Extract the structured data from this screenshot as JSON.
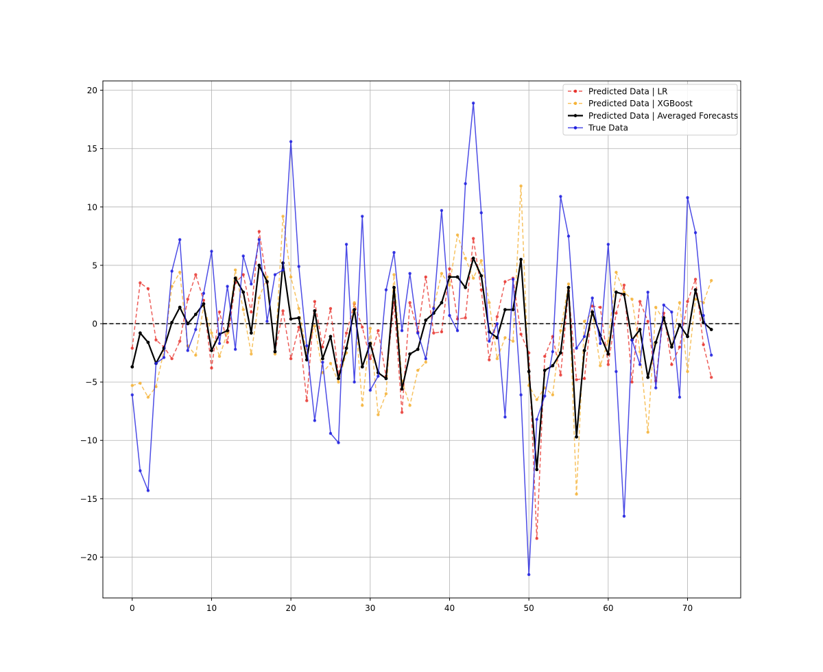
{
  "chart_data": {
    "type": "line",
    "title": "",
    "xlabel": "",
    "ylabel": "",
    "xlim": [
      -3.7,
      76.7
    ],
    "ylim": [
      -23.5,
      20.8
    ],
    "xticks": [
      0,
      10,
      20,
      30,
      40,
      50,
      60,
      70
    ],
    "yticks": [
      -20,
      -15,
      -10,
      -5,
      0,
      5,
      10,
      15,
      20
    ],
    "xtick_labels": [
      "0",
      "10",
      "20",
      "30",
      "40",
      "50",
      "60",
      "70"
    ],
    "ytick_labels": [
      "−20",
      "−15",
      "−10",
      "−5",
      "0",
      "5",
      "10",
      "15",
      "20"
    ],
    "grid": true,
    "legend_position": "top-right",
    "reference_line": {
      "y": 0,
      "style": "dashed",
      "color": "#000000"
    },
    "series": [
      {
        "name": "Predicted Data | LR",
        "color": "#e8342e",
        "style": "dashed",
        "values": [
          -2.1,
          3.5,
          3.0,
          -1.4,
          -2.0,
          -3.0,
          -1.5,
          2.1,
          4.2,
          2.0,
          -3.8,
          1.0,
          -1.6,
          3.5,
          4.2,
          1.0,
          7.9,
          3.5,
          -2.4,
          1.1,
          -3.0,
          -0.3,
          -6.6,
          1.9,
          -2.0,
          1.3,
          -4.4,
          -0.8,
          1.7,
          -0.3,
          -3.0,
          -0.6,
          -4.5,
          1.8,
          -7.6,
          1.8,
          -0.7,
          4.0,
          -0.8,
          -0.7,
          4.7,
          0.4,
          0.5,
          7.3,
          2.9,
          -3.1,
          0.6,
          3.6,
          3.9,
          -0.9,
          -2.5,
          -18.4,
          -2.8,
          -1.1,
          -4.4,
          2.8,
          -4.8,
          -4.7,
          1.5,
          1.4,
          -3.5,
          0.9,
          3.3,
          -5.0,
          1.9,
          0.2,
          -4.9,
          0.9,
          -3.5,
          -2.0,
          1.9,
          3.8,
          -1.8,
          -4.6
        ]
      },
      {
        "name": "Predicted Data | XGBoost",
        "color": "#f5b338",
        "style": "dashed",
        "values": [
          -5.3,
          -5.1,
          -6.3,
          -5.4,
          -2.3,
          3.2,
          4.4,
          -1.9,
          -2.7,
          1.5,
          -0.8,
          -2.8,
          -0.8,
          4.6,
          1.2,
          -2.6,
          2.2,
          4.0,
          -2.6,
          9.2,
          4.0,
          1.3,
          -2.5,
          -0.2,
          -4.2,
          -3.4,
          -5.0,
          -2.5,
          1.8,
          -7.0,
          -0.4,
          -7.8,
          -6.0,
          4.2,
          -4.9,
          -7.0,
          -4.0,
          -3.3,
          1.4,
          4.3,
          3.3,
          7.6,
          5.6,
          3.9,
          5.4,
          1.8,
          -3.0,
          -1.2,
          -1.5,
          11.8,
          -5.3,
          -6.5,
          -5.5,
          -6.1,
          -0.6,
          3.4,
          -14.6,
          0.2,
          0.9,
          -3.6,
          -1.5,
          4.4,
          2.7,
          2.1,
          -2.4,
          -9.3,
          1.4,
          0.3,
          -1.9,
          1.8,
          -4.1,
          2.1,
          1.8,
          3.7
        ]
      },
      {
        "name": "Predicted Data | Averaged Forecasts",
        "color": "#000000",
        "style": "solid",
        "values": [
          -3.7,
          -0.8,
          -1.6,
          -3.4,
          -2.1,
          0.1,
          1.4,
          0.0,
          0.8,
          1.7,
          -2.3,
          -0.9,
          -0.6,
          3.9,
          2.7,
          -0.8,
          5.0,
          3.6,
          -2.4,
          5.2,
          0.4,
          0.5,
          -3.1,
          1.1,
          -3.0,
          -1.1,
          -4.7,
          -2.1,
          1.2,
          -3.7,
          -1.7,
          -4.2,
          -4.7,
          3.1,
          -5.6,
          -2.6,
          -2.2,
          0.3,
          0.9,
          1.8,
          4.0,
          4.0,
          3.1,
          5.6,
          4.1,
          -0.7,
          -1.2,
          1.2,
          1.2,
          5.5,
          -4.1,
          -12.5,
          -4.0,
          -3.6,
          -2.5,
          3.1,
          -9.7,
          -2.3,
          1.0,
          -1.0,
          -2.6,
          2.7,
          2.5,
          -1.4,
          -0.5,
          -4.6,
          -1.6,
          0.5,
          -2.0,
          -0.1,
          -1.1,
          2.9,
          0.1,
          -0.5
        ]
      },
      {
        "name": "True Data",
        "color": "#1f1fdf",
        "style": "solid",
        "values": [
          -6.1,
          -12.6,
          -14.3,
          -3.4,
          -2.9,
          4.5,
          7.2,
          -2.3,
          -0.5,
          2.6,
          6.2,
          -1.7,
          3.2,
          -2.2,
          5.8,
          3.4,
          7.2,
          0.2,
          4.2,
          4.6,
          15.6,
          4.9,
          -1.9,
          -8.3,
          -3.3,
          -9.4,
          -10.2,
          6.8,
          -5.0,
          9.2,
          -5.7,
          -4.5,
          2.9,
          6.1,
          -0.6,
          4.3,
          -0.8,
          -3.0,
          1.3,
          9.7,
          0.7,
          -0.6,
          12.0,
          18.9,
          9.5,
          -1.5,
          0.0,
          -8.0,
          3.8,
          -6.1,
          -21.5,
          -8.2,
          -6.2,
          -2.4,
          10.9,
          7.5,
          -2.1,
          -1.1,
          2.2,
          -1.7,
          6.8,
          -4.1,
          -16.5,
          -1.4,
          -3.5,
          2.7,
          -5.5,
          1.6,
          1.0,
          -6.3,
          10.8,
          7.8,
          0.7,
          -2.7
        ]
      }
    ]
  },
  "colors": {
    "grid": "#b0b0b0",
    "axes": "#000000",
    "legend_border": "#cccccc"
  }
}
